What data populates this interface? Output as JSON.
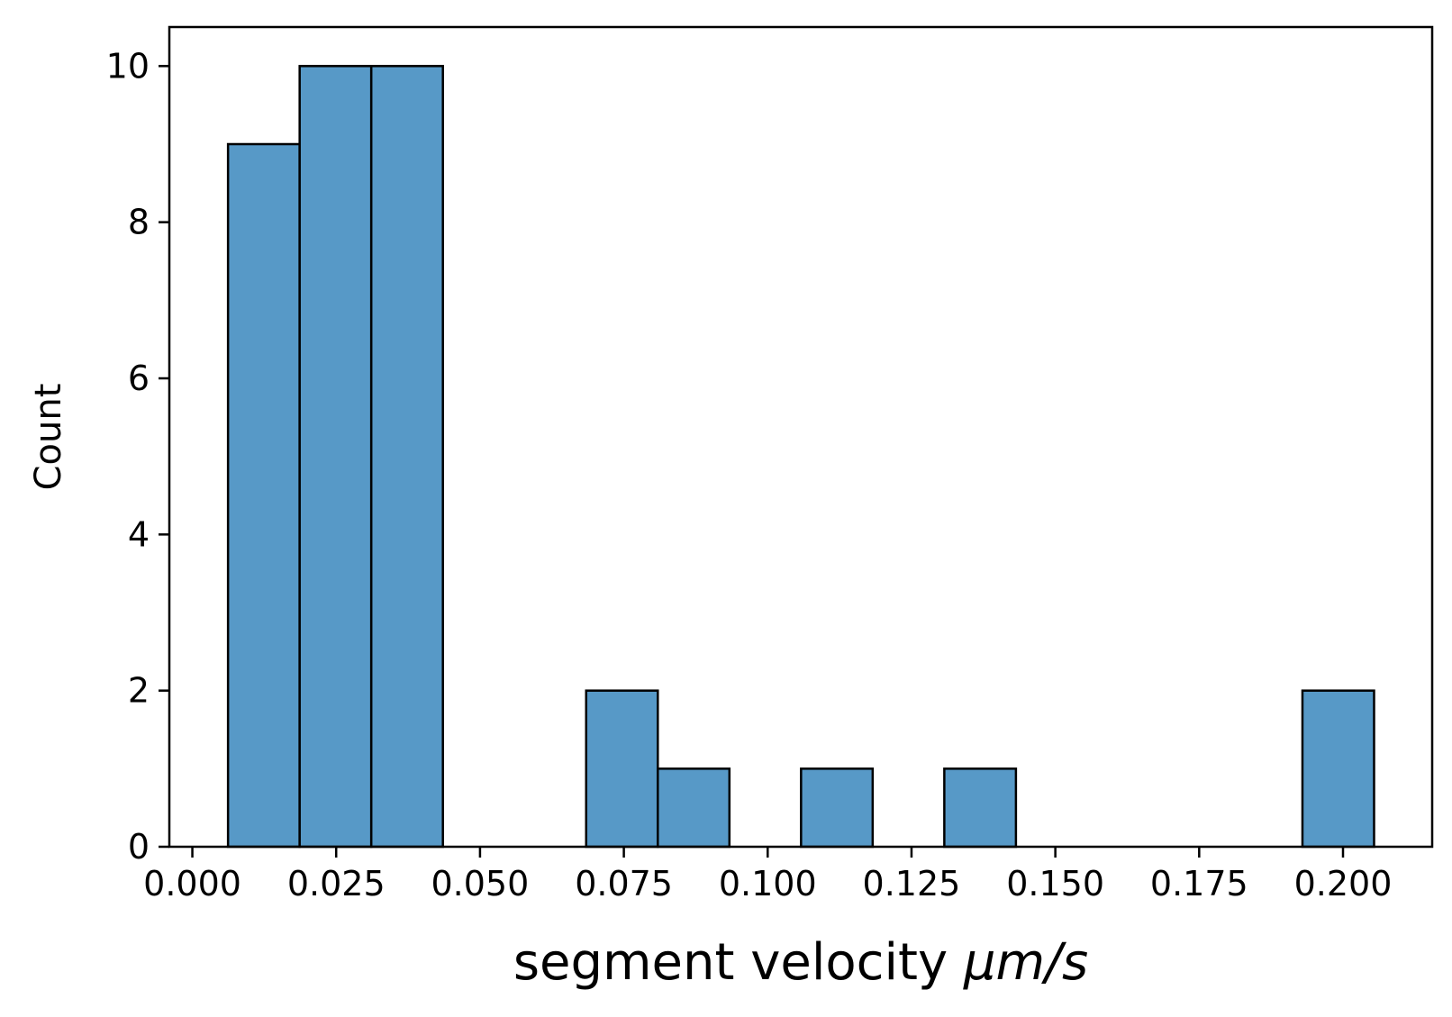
{
  "chart_data": {
    "type": "bar",
    "subtype": "histogram",
    "title": "",
    "xlabel_text": "segment velocity ",
    "xlabel_math": "μm/s",
    "ylabel": "Count",
    "xlim": [
      -0.004,
      0.2155
    ],
    "ylim": [
      0,
      10.5
    ],
    "bin_width": 0.01245,
    "bins": [
      {
        "left": 0.0062,
        "count": 9
      },
      {
        "left": 0.01865,
        "count": 10
      },
      {
        "left": 0.0311,
        "count": 10
      },
      {
        "left": 0.04355,
        "count": 0
      },
      {
        "left": 0.056,
        "count": 0
      },
      {
        "left": 0.06845,
        "count": 2
      },
      {
        "left": 0.0809,
        "count": 1
      },
      {
        "left": 0.09335,
        "count": 0
      },
      {
        "left": 0.1058,
        "count": 1
      },
      {
        "left": 0.11825,
        "count": 0
      },
      {
        "left": 0.1307,
        "count": 1
      },
      {
        "left": 0.14315,
        "count": 0
      },
      {
        "left": 0.1556,
        "count": 0
      },
      {
        "left": 0.16805,
        "count": 0
      },
      {
        "left": 0.1805,
        "count": 0
      },
      {
        "left": 0.19295,
        "count": 2
      }
    ],
    "x_ticks": [
      {
        "value": 0.0,
        "label": "0.000"
      },
      {
        "value": 0.025,
        "label": "0.025"
      },
      {
        "value": 0.05,
        "label": "0.050"
      },
      {
        "value": 0.075,
        "label": "0.075"
      },
      {
        "value": 0.1,
        "label": "0.100"
      },
      {
        "value": 0.125,
        "label": "0.125"
      },
      {
        "value": 0.15,
        "label": "0.150"
      },
      {
        "value": 0.175,
        "label": "0.175"
      },
      {
        "value": 0.2,
        "label": "0.200"
      }
    ],
    "y_ticks": [
      {
        "value": 0,
        "label": "0"
      },
      {
        "value": 2,
        "label": "2"
      },
      {
        "value": 4,
        "label": "4"
      },
      {
        "value": 6,
        "label": "6"
      },
      {
        "value": 8,
        "label": "8"
      },
      {
        "value": 10,
        "label": "10"
      }
    ],
    "grid": false,
    "legend": "none",
    "colors": {
      "bar_fill": "#5799c7",
      "bar_edge": "#000000",
      "axes": "#000000"
    }
  }
}
